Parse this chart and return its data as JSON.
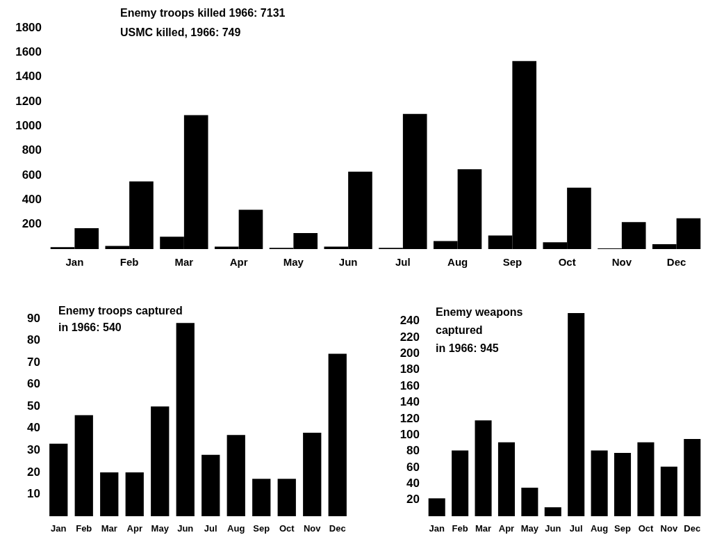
{
  "chart_data": [
    {
      "type": "bar",
      "title": "Enemy troops killed 1966: 7131",
      "subtitle": "USMC killed, 1966: 749",
      "categories": [
        "Jan",
        "Feb",
        "Mar",
        "Apr",
        "May",
        "Jun",
        "Jul",
        "Aug",
        "Sep",
        "Oct",
        "Nov",
        "Dec"
      ],
      "series": [
        {
          "color": "#000000",
          "values": [
            15,
            25,
            100,
            20,
            10,
            20,
            10,
            65,
            110,
            55,
            5,
            40
          ]
        },
        {
          "color": "#000000",
          "values": [
            170,
            550,
            1090,
            320,
            130,
            630,
            1100,
            650,
            1530,
            500,
            220,
            250
          ]
        }
      ],
      "ylim": [
        0,
        1800
      ],
      "yticks": [
        200,
        400,
        600,
        800,
        1000,
        1200,
        1400,
        1600,
        1800
      ],
      "grid": false
    },
    {
      "type": "bar",
      "title": "Enemy troops captured\nin 1966: 540",
      "categories": [
        "Jan",
        "Feb",
        "Mar",
        "Apr",
        "May",
        "Jun",
        "Jul",
        "Aug",
        "Sep",
        "Oct",
        "Nov",
        "Dec"
      ],
      "values": [
        33,
        46,
        20,
        20,
        50,
        88,
        28,
        37,
        17,
        17,
        38,
        74
      ],
      "color": "#000000",
      "ylim": [
        0,
        90
      ],
      "yticks": [
        10,
        20,
        30,
        40,
        50,
        60,
        70,
        80,
        90
      ],
      "grid": false
    },
    {
      "type": "bar",
      "title": "Enemy weapons\ncaptured\nin 1966: 945",
      "categories": [
        "Jan",
        "Feb",
        "Mar",
        "Apr",
        "May",
        "Jun",
        "Jul",
        "Aug",
        "Sep",
        "Oct",
        "Nov",
        "Dec"
      ],
      "values": [
        22,
        81,
        118,
        91,
        35,
        11,
        250,
        81,
        78,
        91,
        61,
        95
      ],
      "color": "#000000",
      "ylim": [
        0,
        250
      ],
      "yticks": [
        20,
        40,
        60,
        80,
        100,
        120,
        140,
        160,
        180,
        200,
        220,
        240
      ],
      "grid": false
    }
  ]
}
